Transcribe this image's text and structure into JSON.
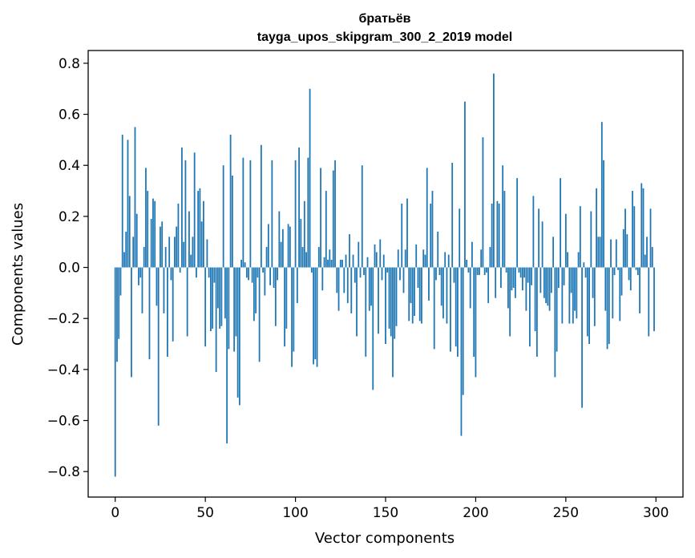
{
  "chart_data": {
    "type": "bar",
    "title": "братьёв",
    "subtitle": "tayga_upos_skipgram_300_2_2019 model",
    "xlabel": "Vector components",
    "ylabel": "Components values",
    "xlim": [
      -15,
      315
    ],
    "ylim": [
      -0.9,
      0.85
    ],
    "xticks": [
      0,
      50,
      100,
      150,
      200,
      250,
      300
    ],
    "yticks": [
      -0.8,
      -0.6,
      -0.4,
      -0.2,
      0.0,
      0.2,
      0.4,
      0.6,
      0.8
    ],
    "ytick_labels": [
      "−0.8",
      "−0.6",
      "−0.4",
      "−0.2",
      "0.0",
      "0.2",
      "0.4",
      "0.6",
      "0.8"
    ],
    "bar_color": "#1f77b4",
    "grid": false,
    "x": "0..299",
    "values": [
      -0.82,
      -0.37,
      -0.28,
      -0.11,
      0.52,
      0.06,
      0.14,
      0.5,
      0.28,
      -0.43,
      0.12,
      0.55,
      0.21,
      -0.07,
      -0.04,
      -0.18,
      0.08,
      0.39,
      0.3,
      -0.36,
      0.19,
      0.27,
      0.26,
      -0.15,
      -0.62,
      0.16,
      0.18,
      -0.18,
      0.08,
      -0.35,
      0.12,
      -0.05,
      -0.29,
      0.12,
      0.16,
      0.25,
      -0.02,
      0.47,
      0.1,
      0.42,
      -0.27,
      0.22,
      0.05,
      0.12,
      0.45,
      -0.04,
      0.3,
      0.31,
      0.18,
      0.26,
      -0.31,
      0.11,
      -0.04,
      -0.25,
      -0.24,
      -0.06,
      -0.41,
      -0.16,
      -0.24,
      -0.23,
      0.4,
      -0.2,
      -0.69,
      -0.32,
      0.52,
      0.36,
      -0.33,
      -0.27,
      -0.51,
      -0.54,
      0.03,
      0.43,
      0.02,
      -0.04,
      -0.05,
      0.42,
      -0.06,
      -0.21,
      -0.18,
      -0.04,
      -0.37,
      0.48,
      -0.02,
      -0.11,
      0.08,
      0.17,
      -0.07,
      0.42,
      -0.08,
      -0.23,
      -0.05,
      0.22,
      0.1,
      0.15,
      -0.31,
      -0.24,
      0.17,
      0.16,
      -0.39,
      -0.33,
      0.42,
      -0.14,
      0.47,
      0.19,
      0.08,
      0.26,
      0.06,
      0.43,
      0.7,
      -0.02,
      -0.38,
      -0.36,
      -0.39,
      0.08,
      0.39,
      -0.09,
      0.04,
      0.3,
      0.03,
      0.07,
      0.03,
      0.38,
      0.42,
      -0.1,
      -0.17,
      0.03,
      0.03,
      -0.1,
      0.05,
      -0.14,
      0.13,
      -0.18,
      0.05,
      -0.06,
      -0.27,
      0.1,
      -0.04,
      0.4,
      -0.03,
      -0.35,
      0.04,
      -0.17,
      -0.15,
      -0.48,
      0.09,
      0.06,
      -0.26,
      0.11,
      -0.05,
      0.05,
      -0.3,
      -0.02,
      -0.24,
      -0.27,
      -0.43,
      -0.28,
      -0.23,
      0.07,
      -0.05,
      0.25,
      -0.1,
      0.07,
      0.27,
      -0.21,
      -0.14,
      -0.22,
      -0.19,
      0.09,
      -0.08,
      -0.21,
      -0.22,
      0.07,
      0.05,
      0.39,
      -0.13,
      0.25,
      0.3,
      -0.32,
      -0.05,
      0.14,
      -0.03,
      -0.15,
      -0.2,
      0.06,
      -0.22,
      0.05,
      -0.33,
      0.41,
      -0.06,
      -0.31,
      -0.35,
      0.23,
      -0.66,
      -0.5,
      0.65,
      0.03,
      -0.02,
      -0.16,
      0.1,
      -0.35,
      -0.43,
      -0.03,
      -0.03,
      0.07,
      0.51,
      -0.03,
      -0.02,
      -0.14,
      0.08,
      0.25,
      0.76,
      -0.12,
      0.26,
      0.25,
      -0.08,
      0.4,
      0.3,
      -0.02,
      -0.16,
      -0.27,
      -0.09,
      -0.08,
      -0.12,
      0.35,
      -0.02,
      -0.04,
      -0.09,
      -0.04,
      -0.17,
      -0.06,
      -0.31,
      -0.07,
      0.28,
      -0.25,
      -0.35,
      0.23,
      -0.1,
      0.18,
      -0.12,
      -0.14,
      -0.15,
      -0.17,
      -0.1,
      0.12,
      -0.43,
      -0.33,
      -0.08,
      0.35,
      -0.22,
      -0.07,
      0.21,
      0.06,
      -0.22,
      -0.1,
      -0.22,
      -0.17,
      -0.2,
      0.06,
      0.24,
      -0.55,
      0.02,
      -0.04,
      -0.27,
      -0.3,
      0.22,
      -0.12,
      -0.23,
      0.31,
      0.12,
      0.12,
      0.57,
      0.42,
      -0.17,
      -0.32,
      -0.3,
      0.11,
      -0.2,
      -0.03,
      0.11,
      -0.01,
      -0.21,
      -0.11,
      0.15,
      0.23,
      0.13,
      -0.05,
      -0.09,
      0.3,
      0.24,
      -0.01,
      -0.03,
      -0.18,
      0.33,
      0.31,
      0.05,
      0.12,
      -0.27,
      0.23,
      0.08,
      -0.25
    ]
  }
}
